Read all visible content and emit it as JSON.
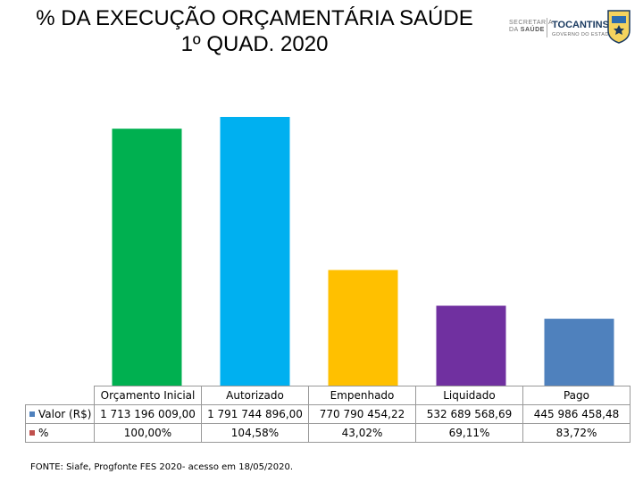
{
  "header": {
    "title_line1": "% DA EXECUÇÃO ORÇAMENTÁRIA SAÚDE",
    "title_line2": "1º QUAD. 2020"
  },
  "logos": {
    "secretaria_line1": "SECRETARIA",
    "secretaria_line2": "DA",
    "secretaria_line2b": "SAÚDE",
    "state_name": "TOCANTINS",
    "state_sub": "GOVERNO DO ESTADO"
  },
  "chart_data": {
    "type": "bar",
    "categories": [
      "Orçamento Inicial",
      "Autorizado",
      "Empenhado",
      "Liquidado",
      "Pago"
    ],
    "series": [
      {
        "name": "Valor (R$)",
        "values": [
          1713196009.0,
          1791744896.0,
          770790454.22,
          532689568.69,
          445986458.48
        ],
        "labels": [
          "1 713 196 009,00",
          "1 791 744 896,00",
          "770 790 454,22",
          "532 689 568,69",
          "445 986 458,48"
        ],
        "color": "#4F81BD"
      },
      {
        "name": "%",
        "values": [
          100.0,
          104.58,
          43.02,
          69.11,
          83.72
        ],
        "labels": [
          "100,00%",
          "104,58%",
          "43,02%",
          "69,11%",
          "83,72%"
        ],
        "color": "#C0504D"
      }
    ],
    "bar_colors": [
      "#00B050",
      "#00B0F0",
      "#FFC000",
      "#7030A0",
      "#4F81BD"
    ],
    "ylim": [
      0,
      2000000000
    ],
    "grid": false,
    "legend": "left of data table"
  },
  "footer": {
    "source": "FONTE: Siafe, Progfonte FES 2020- acesso em 18/05/2020."
  }
}
